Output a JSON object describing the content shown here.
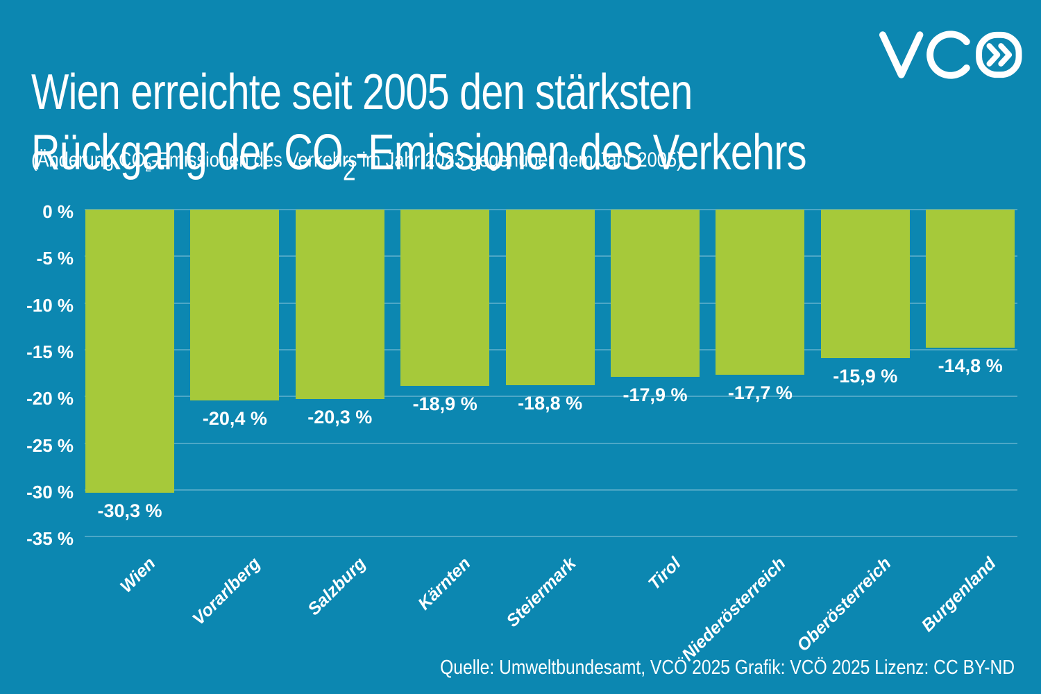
{
  "title": {
    "line1": "Wien erreichte seit 2005 den stärksten",
    "line2_pre": "Rückgang der CO",
    "line2_sub": "2",
    "line2_post": "-Emissionen des Verkehrs"
  },
  "subtitle": {
    "pre": "(Änderung CO",
    "sub": "2",
    "post": "-Emissionen des Verkehrs im Jahr 2023 gegenüber dem Jahr 2005)"
  },
  "logo": {
    "name": "VCÖ",
    "chevrons": "»"
  },
  "footer": {
    "credit": "Quelle: Umweltbundesamt, VCÖ 2025 Grafik: VCÖ 2025 Lizenz: CC BY-ND"
  },
  "colors": {
    "background": "#0c87b1",
    "bar": "#a6c93a",
    "text": "#ffffff",
    "gridline": "rgba(255,255,255,0.27)"
  },
  "chart_data": {
    "type": "bar",
    "title": "Wien erreichte seit 2005 den stärksten Rückgang der CO2-Emissionen des Verkehrs",
    "subtitle": "(Änderung CO2-Emissionen des Verkehrs im Jahr 2023 gegenüber dem Jahr 2005)",
    "categories": [
      "Wien",
      "Vorarlberg",
      "Salzburg",
      "Kärnten",
      "Steiermark",
      "Tirol",
      "Niederösterreich",
      "Oberösterreich",
      "Burgenland"
    ],
    "values": [
      -30.3,
      -20.4,
      -20.3,
      -18.9,
      -18.8,
      -17.9,
      -17.7,
      -15.9,
      -14.8
    ],
    "value_labels": [
      "-30,3 %",
      "-20,4 %",
      "-20,3 %",
      "-18,9 %",
      "-18,8 %",
      "-17,9 %",
      "-17,7 %",
      "-15,9 %",
      "-14,8 %"
    ],
    "xlabel": "",
    "ylabel": "",
    "ylim": [
      -35,
      0
    ],
    "yticks": [
      0,
      -5,
      -10,
      -15,
      -20,
      -25,
      -30,
      -35
    ],
    "ytick_labels": [
      "0 %",
      "-5 %",
      "-10 %",
      "-15 %",
      "-20 %",
      "-25 %",
      "-30 %",
      "-35 %"
    ],
    "grid": "horizontal",
    "legend": "none",
    "bar_color": "#a6c93a"
  }
}
